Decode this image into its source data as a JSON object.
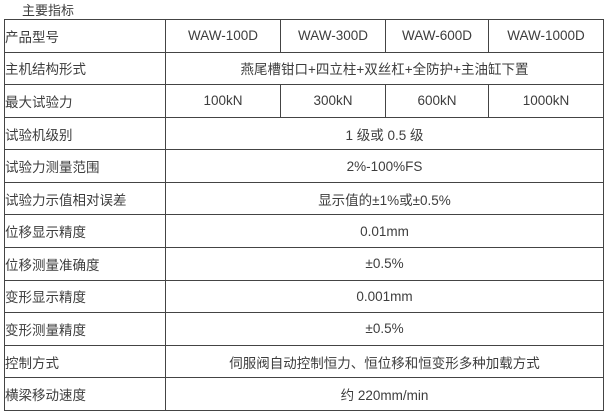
{
  "title": "主要指标",
  "colors": {
    "background": "#ffffff",
    "border": "#444444",
    "text": "#3d3d3d"
  },
  "table": {
    "value_columns": 4,
    "rows": [
      {
        "label": "产品型号",
        "values": [
          "WAW-100D",
          "WAW-300D",
          "WAW-600D",
          "WAW-1000D"
        ]
      },
      {
        "label": "主机结构形式",
        "values": [
          "燕尾槽钳口+四立柱+双丝杠+全防护+主油缸下置"
        ]
      },
      {
        "label": "最大试验力",
        "values": [
          "100kN",
          "300kN",
          "600kN",
          "1000kN"
        ]
      },
      {
        "label": "试验机级别",
        "values": [
          "1 级或 0.5 级"
        ]
      },
      {
        "label": "试验力测量范围",
        "values": [
          "2%-100%FS"
        ]
      },
      {
        "label": "试验力示值相对误差",
        "values": [
          "显示值的±1%或±0.5%"
        ]
      },
      {
        "label": "位移显示精度",
        "values": [
          "0.01mm"
        ]
      },
      {
        "label": "位移测量准确度",
        "values": [
          "±0.5%"
        ]
      },
      {
        "label": "变形显示精度",
        "values": [
          "0.001mm"
        ]
      },
      {
        "label": "变形测量精度",
        "values": [
          "±0.5%"
        ]
      },
      {
        "label": "控制方式",
        "values": [
          "伺服阀自动控制恒力、恒位移和恒变形多种加载方式"
        ]
      },
      {
        "label": "横梁移动速度",
        "values": [
          "约 220mm/min"
        ]
      }
    ]
  }
}
